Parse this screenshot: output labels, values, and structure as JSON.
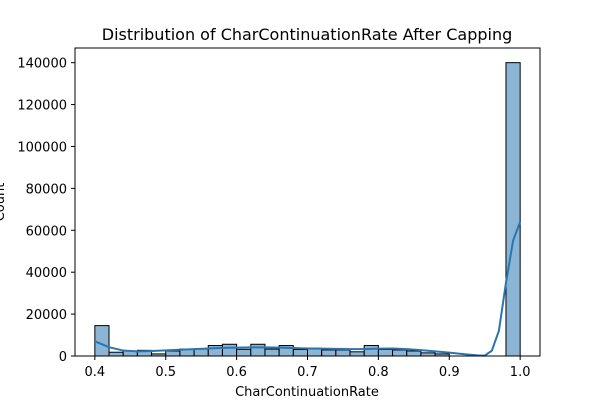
{
  "chart_data": {
    "type": "bar",
    "title": "Distribution of CharContinuationRate After Capping",
    "xlabel": "CharContinuationRate",
    "ylabel": "Count",
    "xlim": [
      0.372,
      1.028
    ],
    "ylim": [
      0,
      147000
    ],
    "x_ticks": [
      0.4,
      0.5,
      0.6,
      0.7,
      0.8,
      0.9,
      1.0
    ],
    "x_tick_labels": [
      "0.4",
      "0.5",
      "0.6",
      "0.7",
      "0.8",
      "0.9",
      "1.0"
    ],
    "y_ticks": [
      0,
      20000,
      40000,
      60000,
      80000,
      100000,
      120000,
      140000
    ],
    "y_tick_labels": [
      "0",
      "20000",
      "40000",
      "60000",
      "80000",
      "100000",
      "120000",
      "140000"
    ],
    "bins": {
      "start": 0.4,
      "width": 0.02,
      "counts": [
        14500,
        1800,
        2400,
        2700,
        1000,
        2400,
        3300,
        3300,
        5000,
        5600,
        3200,
        5600,
        3300,
        5000,
        3100,
        3700,
        2900,
        2900,
        2000,
        5000,
        3100,
        2900,
        2400,
        1500,
        1000,
        0,
        0,
        0,
        0,
        140000
      ]
    },
    "kde": {
      "x": [
        0.4,
        0.42,
        0.44,
        0.46,
        0.48,
        0.5,
        0.52,
        0.54,
        0.56,
        0.58,
        0.6,
        0.62,
        0.64,
        0.66,
        0.68,
        0.7,
        0.72,
        0.74,
        0.76,
        0.78,
        0.8,
        0.82,
        0.84,
        0.86,
        0.88,
        0.9,
        0.92,
        0.94,
        0.95,
        0.96,
        0.97,
        0.98,
        0.99,
        1.0
      ],
      "y": [
        7000,
        4200,
        2600,
        2200,
        2400,
        2700,
        3000,
        3300,
        3600,
        3900,
        4000,
        4100,
        4100,
        4000,
        3800,
        3600,
        3500,
        3400,
        3300,
        3300,
        3500,
        3600,
        3300,
        2800,
        2200,
        1600,
        900,
        300,
        200,
        2500,
        12000,
        35000,
        55000,
        64000
      ]
    },
    "colors": {
      "bar": "#7fadd0",
      "line": "#2a75b0"
    },
    "grid": false,
    "legend": "none"
  }
}
